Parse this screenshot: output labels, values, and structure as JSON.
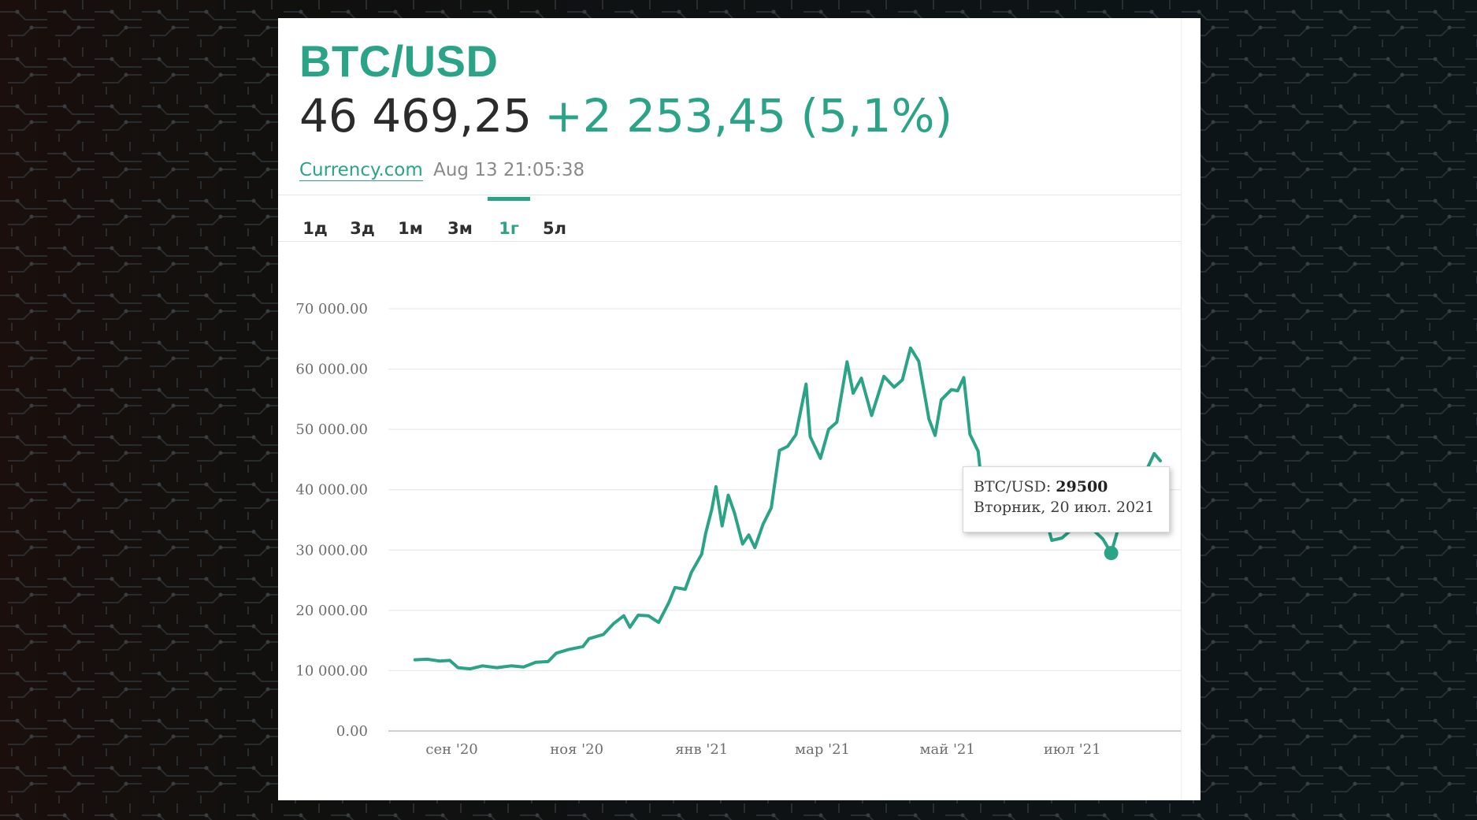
{
  "header": {
    "pair": "BTC/USD",
    "price": "46 469,25",
    "change": "+2 253,45 (5,1%)",
    "source": "Currency.com",
    "timestamp": "Aug 13 21:05:38"
  },
  "tabs": [
    {
      "label": "1д",
      "active": false
    },
    {
      "label": "3д",
      "active": false
    },
    {
      "label": "1м",
      "active": false
    },
    {
      "label": "3м",
      "active": false
    },
    {
      "label": "1г",
      "active": true
    },
    {
      "label": "5л",
      "active": false
    }
  ],
  "tooltip": {
    "series_prefix": "BTC/USD:",
    "value": "29500",
    "date": "Вторник, 20 июл. 2021"
  },
  "colors": {
    "accent": "#2aa386",
    "text": "#2b2b2b",
    "grid": "#e9e9e9"
  },
  "chart_data": {
    "type": "line",
    "title": "",
    "xlabel": "",
    "ylabel": "",
    "ylim": [
      0,
      70000
    ],
    "y_ticks": [
      "0.00",
      "10 000.00",
      "20 000.00",
      "30 000.00",
      "40 000.00",
      "50 000.00",
      "60 000.00",
      "70 000.00"
    ],
    "x_ticks": [
      "сен '20",
      "ноя '20",
      "янв '21",
      "мар '21",
      "май '21",
      "июл '21"
    ],
    "grid": true,
    "series": [
      {
        "values": [
          [
            "2020-08-14",
            11800
          ],
          [
            "2020-08-20",
            11900
          ],
          [
            "2020-08-26",
            11600
          ],
          [
            "2020-08-31",
            11700
          ],
          [
            "2020-09-04",
            10500
          ],
          [
            "2020-09-10",
            10300
          ],
          [
            "2020-09-16",
            10800
          ],
          [
            "2020-09-23",
            10500
          ],
          [
            "2020-09-30",
            10800
          ],
          [
            "2020-10-06",
            10600
          ],
          [
            "2020-10-12",
            11400
          ],
          [
            "2020-10-18",
            11500
          ],
          [
            "2020-10-22",
            12900
          ],
          [
            "2020-10-28",
            13500
          ],
          [
            "2020-11-04",
            14000
          ],
          [
            "2020-11-07",
            15300
          ],
          [
            "2020-11-14",
            16000
          ],
          [
            "2020-11-19",
            17800
          ],
          [
            "2020-11-24",
            19100
          ],
          [
            "2020-11-27",
            17200
          ],
          [
            "2020-12-01",
            19200
          ],
          [
            "2020-12-06",
            19100
          ],
          [
            "2020-12-11",
            18000
          ],
          [
            "2020-12-16",
            21300
          ],
          [
            "2020-12-19",
            23800
          ],
          [
            "2020-12-24",
            23500
          ],
          [
            "2020-12-27",
            26300
          ],
          [
            "2021-01-01",
            29300
          ],
          [
            "2021-01-03",
            32800
          ],
          [
            "2021-01-06",
            36800
          ],
          [
            "2021-01-08",
            40500
          ],
          [
            "2021-01-11",
            34000
          ],
          [
            "2021-01-14",
            39100
          ],
          [
            "2021-01-17",
            36200
          ],
          [
            "2021-01-21",
            31000
          ],
          [
            "2021-01-24",
            32500
          ],
          [
            "2021-01-27",
            30400
          ],
          [
            "2021-01-31",
            34300
          ],
          [
            "2021-02-04",
            37000
          ],
          [
            "2021-02-08",
            46500
          ],
          [
            "2021-02-12",
            47200
          ],
          [
            "2021-02-16",
            49100
          ],
          [
            "2021-02-21",
            57500
          ],
          [
            "2021-02-23",
            48800
          ],
          [
            "2021-02-28",
            45200
          ],
          [
            "2021-03-04",
            50000
          ],
          [
            "2021-03-08",
            51200
          ],
          [
            "2021-03-13",
            61200
          ],
          [
            "2021-03-16",
            56000
          ],
          [
            "2021-03-20",
            58500
          ],
          [
            "2021-03-25",
            52300
          ],
          [
            "2021-03-31",
            58800
          ],
          [
            "2021-04-05",
            57000
          ],
          [
            "2021-04-09",
            58200
          ],
          [
            "2021-04-13",
            63500
          ],
          [
            "2021-04-17",
            61300
          ],
          [
            "2021-04-22",
            51700
          ],
          [
            "2021-04-25",
            49000
          ],
          [
            "2021-04-28",
            54900
          ],
          [
            "2021-05-03",
            56600
          ],
          [
            "2021-05-06",
            56400
          ],
          [
            "2021-05-09",
            58600
          ],
          [
            "2021-05-12",
            49200
          ],
          [
            "2021-05-16",
            46400
          ],
          [
            "2021-05-19",
            37000
          ],
          [
            "2021-05-23",
            34800
          ],
          [
            "2021-05-26",
            39000
          ],
          [
            "2021-06-01",
            36700
          ],
          [
            "2021-06-08",
            33400
          ],
          [
            "2021-06-14",
            40200
          ],
          [
            "2021-06-21",
            31600
          ],
          [
            "2021-06-26",
            32000
          ],
          [
            "2021-07-01",
            33500
          ],
          [
            "2021-07-06",
            34200
          ],
          [
            "2021-07-12",
            33100
          ],
          [
            "2021-07-16",
            31800
          ],
          [
            "2021-07-20",
            29500
          ],
          [
            "2021-07-25",
            35400
          ],
          [
            "2021-07-30",
            42000
          ],
          [
            "2021-08-03",
            38200
          ],
          [
            "2021-08-07",
            43800
          ],
          [
            "2021-08-10",
            46000
          ],
          [
            "2021-08-13",
            44800
          ]
        ]
      }
    ],
    "highlight": {
      "x": "2021-07-20",
      "y": 29500
    }
  }
}
